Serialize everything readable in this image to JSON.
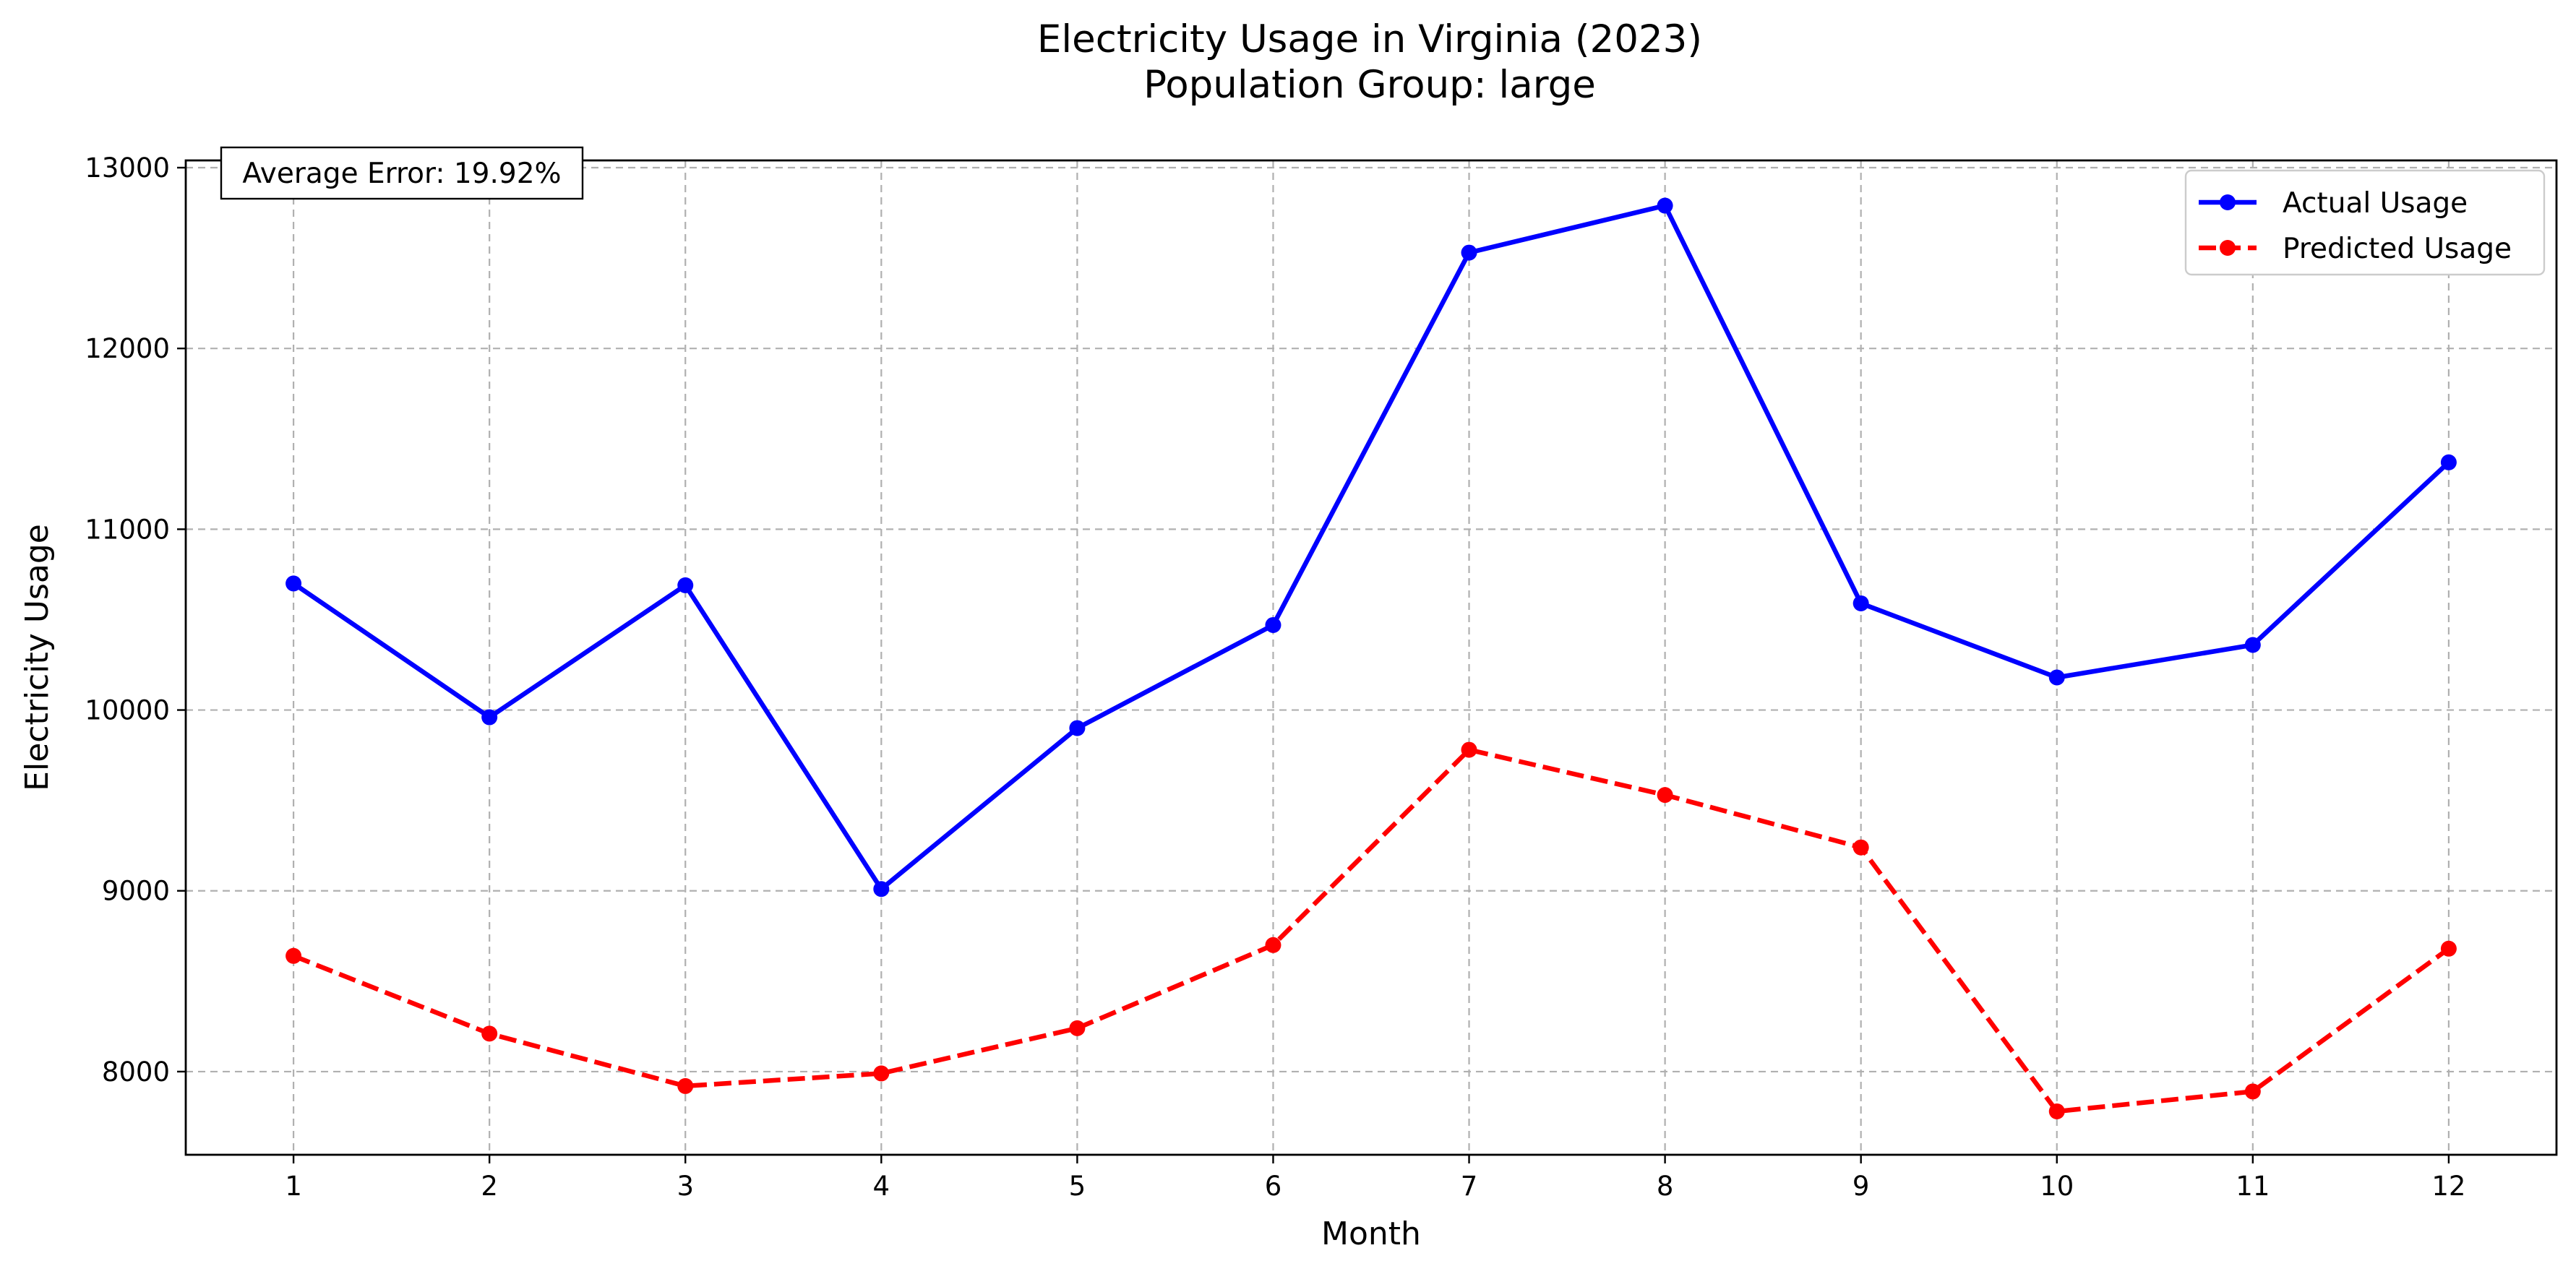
{
  "chart_data": {
    "type": "line",
    "title": "Electricity Usage in Virginia (2023)",
    "subtitle": "Population Group: large",
    "xlabel": "Month",
    "ylabel": "Electricity Usage",
    "x": [
      1,
      2,
      3,
      4,
      5,
      6,
      7,
      8,
      9,
      10,
      11,
      12
    ],
    "x_tick_labels": [
      "1",
      "2",
      "3",
      "4",
      "5",
      "6",
      "7",
      "8",
      "9",
      "10",
      "11",
      "12"
    ],
    "xlim": [
      0.45,
      12.55
    ],
    "ylim": [
      7540,
      13040
    ],
    "y_ticks": [
      8000,
      9000,
      10000,
      11000,
      12000,
      13000
    ],
    "y_tick_labels": [
      "8000",
      "9000",
      "10000",
      "11000",
      "12000",
      "13000"
    ],
    "grid": true,
    "legend_position": "top-right",
    "annotation": "Average Error: 19.92%",
    "series": [
      {
        "name": "Actual Usage",
        "color": "#0000ff",
        "line_style": "solid",
        "marker": "circle",
        "values": [
          10700,
          9960,
          10690,
          9010,
          9900,
          10470,
          12530,
          12790,
          10590,
          10180,
          10360,
          11370
        ]
      },
      {
        "name": "Predicted Usage",
        "color": "#ff0000",
        "line_style": "dashed",
        "marker": "circle",
        "values": [
          8640,
          8210,
          7920,
          7990,
          8240,
          8700,
          9780,
          9530,
          9240,
          7780,
          7890,
          8680
        ]
      }
    ]
  }
}
